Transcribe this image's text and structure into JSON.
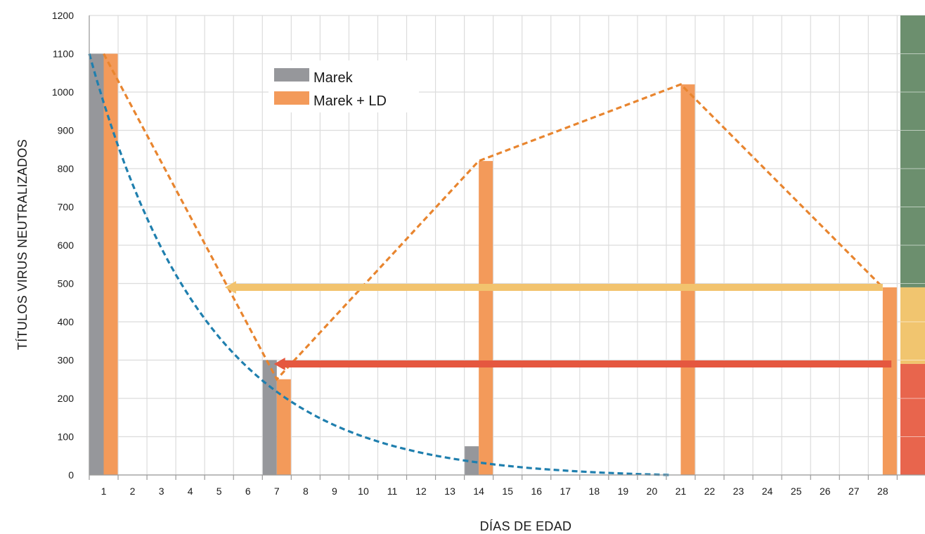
{
  "chart_data": {
    "type": "bar",
    "title": "",
    "xlabel": "DÍAS DE EDAD",
    "ylabel": "TÍTULOS VIRUS NEUTRALIZADOS",
    "x_ticks": [
      "1",
      "2",
      "3",
      "4",
      "5",
      "6",
      "7",
      "8",
      "9",
      "10",
      "11",
      "12",
      "13",
      "14",
      "15",
      "16",
      "17",
      "18",
      "19",
      "20",
      "21",
      "22",
      "23",
      "24",
      "25",
      "26",
      "27",
      "28"
    ],
    "y_ticks": [
      "0",
      "100",
      "200",
      "300",
      "400",
      "500",
      "600",
      "700",
      "800",
      "900",
      "1000",
      "1100",
      "1200"
    ],
    "ylim": [
      0,
      1200
    ],
    "grid": true,
    "legend_position": "top-left",
    "series": [
      {
        "name": "Marek",
        "color": "#96979b",
        "points": [
          {
            "day": 1,
            "value": 1100
          },
          {
            "day": 7,
            "value": 300
          },
          {
            "day": 14,
            "value": 75
          }
        ]
      },
      {
        "name": "Marek + LD",
        "color": "#f39a5a",
        "points": [
          {
            "day": 1,
            "value": 1100
          },
          {
            "day": 7,
            "value": 250
          },
          {
            "day": 14,
            "value": 820
          },
          {
            "day": 21,
            "value": 1020
          },
          {
            "day": 28,
            "value": 490
          }
        ]
      }
    ],
    "trend_lines": [
      {
        "color": "#1f7fae",
        "style": "dashed",
        "shape": "exponential-decay",
        "from": {
          "day": 0.5,
          "value": 1100
        },
        "to": {
          "day": 20.6,
          "value": 0
        },
        "through": [
          {
            "day": 0.5,
            "value": 1100
          },
          {
            "day": 3,
            "value": 700
          },
          {
            "day": 6,
            "value": 390
          },
          {
            "day": 7,
            "value": 300
          },
          {
            "day": 10,
            "value": 150
          },
          {
            "day": 14,
            "value": 65
          },
          {
            "day": 18,
            "value": 22
          },
          {
            "day": 20.6,
            "value": 0
          }
        ]
      },
      {
        "color": "#e8852f",
        "style": "dashed",
        "shape": "polyline",
        "through": [
          {
            "day": 1,
            "value": 1100
          },
          {
            "day": 7,
            "value": 250
          },
          {
            "day": 14,
            "value": 820
          },
          {
            "day": 21,
            "value": 1020
          },
          {
            "day": 28,
            "value": 490
          }
        ]
      }
    ],
    "arrows": [
      {
        "color": "#f2c36e",
        "value": 490,
        "from_day": 28,
        "to_day": 5.2
      },
      {
        "color": "#e5573f",
        "value": 290,
        "from_day": 28.3,
        "to_day": 6.9
      }
    ],
    "zone_bands": [
      {
        "color": "#6c8f6e",
        "from": 490,
        "to": 1200
      },
      {
        "color": "#f1c56f",
        "from": 290,
        "to": 490
      },
      {
        "color": "#e8654d",
        "from": 0,
        "to": 290
      }
    ]
  }
}
